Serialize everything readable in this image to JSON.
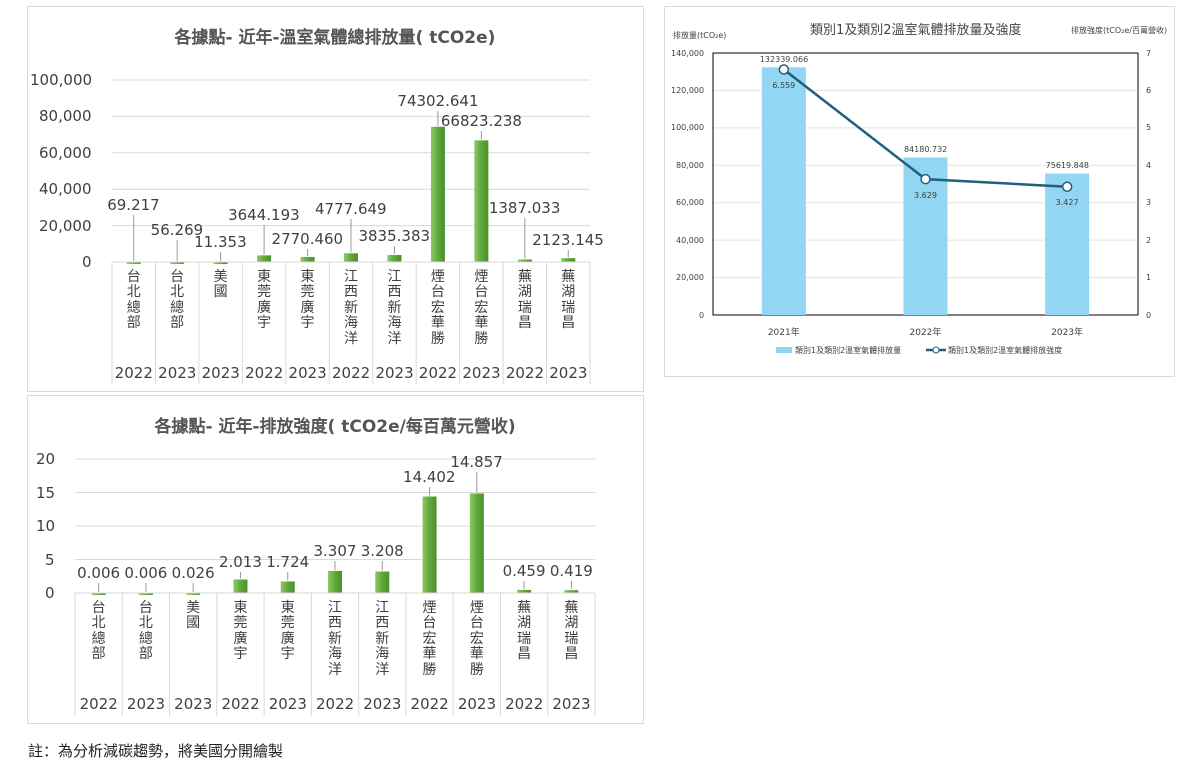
{
  "note": "註：為分析減碳趨勢，將美國分開繪製",
  "chart_data": [
    {
      "type": "bar",
      "title": "各據點- 近年-溫室氣體總排放量( tCO2e)",
      "ylim": [
        0,
        100000
      ],
      "yticks": [
        "0",
        "20,000",
        "40,000",
        "60,000",
        "80,000",
        "100,000"
      ],
      "categories": [
        "台北總部",
        "台北總部",
        "美國",
        "東莞廣宇",
        "東莞廣宇",
        "江西新海洋",
        "江西新海洋",
        "煙台宏華勝",
        "煙台宏華勝",
        "蕪湖瑞昌",
        "蕪湖瑞昌"
      ],
      "years": [
        "2022",
        "2023",
        "2023",
        "2022",
        "2023",
        "2022",
        "2023",
        "2022",
        "2023",
        "2022",
        "2023"
      ],
      "values": [
        69.217,
        56.269,
        11.353,
        3644.193,
        2770.46,
        4777.649,
        3835.383,
        74302.641,
        66823.238,
        1387.033,
        2123.145
      ],
      "labels": [
        "69.217",
        "56.269",
        "11.353",
        "3644.193",
        "2770.460",
        "4777.649",
        "3835.383",
        "74302.641",
        "66823.238",
        "1387.033",
        "2123.145"
      ],
      "color": "#5fa83a"
    },
    {
      "type": "bar",
      "title": "各據點- 近年-排放強度( tCO2e/每百萬元營收)",
      "ylim": [
        0,
        20
      ],
      "yticks": [
        "0",
        "5",
        "10",
        "15",
        "20"
      ],
      "categories": [
        "台北總部",
        "台北總部",
        "美國",
        "東莞廣宇",
        "東莞廣宇",
        "江西新海洋",
        "江西新海洋",
        "煙台宏華勝",
        "煙台宏華勝",
        "蕪湖瑞昌",
        "蕪湖瑞昌"
      ],
      "years": [
        "2022",
        "2023",
        "2023",
        "2022",
        "2023",
        "2022",
        "2023",
        "2022",
        "2023",
        "2022",
        "2023"
      ],
      "values": [
        0.006,
        0.006,
        0.026,
        2.013,
        1.724,
        3.307,
        3.208,
        14.402,
        14.857,
        0.459,
        0.419
      ],
      "labels": [
        "0.006",
        "0.006",
        "0.026",
        "2.013",
        "1.724",
        "3.307",
        "3.208",
        "14.402",
        "14.857",
        "0.459",
        "0.419"
      ],
      "color": "#5fa83a"
    },
    {
      "type": "bar+line",
      "title": "類別1及類別2溫室氣體排放量及強度",
      "ylabel": "排放量(tCO₂e)",
      "y2label": "排放強度(tCO₂e/百萬營收)",
      "ylim": [
        0,
        140000
      ],
      "y2lim": [
        0,
        7
      ],
      "yticks": [
        "0",
        "20,000",
        "40,000",
        "60,000",
        "80,000",
        "100,000",
        "120,000",
        "140,000"
      ],
      "y2ticks": [
        "0",
        "1",
        "2",
        "3",
        "4",
        "5",
        "6",
        "7"
      ],
      "categories": [
        "2021年",
        "2022年",
        "2023年"
      ],
      "series": [
        {
          "name": "類別1及類別2溫室氣體排放量",
          "type": "bar",
          "values": [
            132339.066,
            84180.732,
            75619.848
          ],
          "labels": [
            "132339.066",
            "84180.732",
            "75619.848"
          ],
          "color": "#92d6f3"
        },
        {
          "name": "類別1及類別2溫室氣體排放強度",
          "type": "line",
          "values": [
            6.559,
            3.629,
            3.427
          ],
          "labels": [
            "6.559",
            "3.629",
            "3.427"
          ],
          "color": "#1f5f7f"
        }
      ]
    }
  ]
}
